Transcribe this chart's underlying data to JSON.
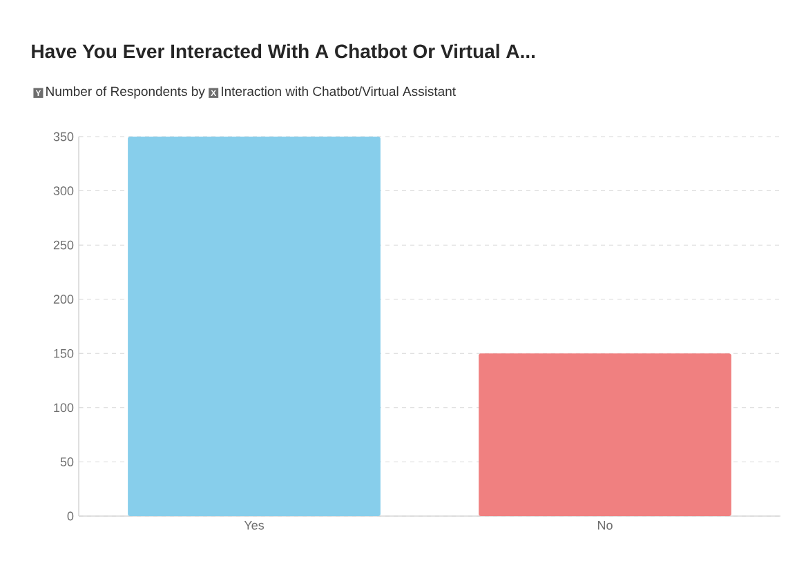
{
  "chart_data": {
    "type": "bar",
    "title": "Have You Ever Interacted With A Chatbot Or Virtual A...",
    "subtitle": "by",
    "ylabel": "Number of Respondents",
    "xlabel": "Interaction with Chatbot/Virtual Assistant",
    "annotations": [
      "Y",
      "X"
    ],
    "categories": [
      "Yes",
      "No"
    ],
    "values": [
      350,
      150
    ],
    "colors": [
      "#87ceeb",
      "#f08080"
    ],
    "ylim": [
      0,
      350
    ],
    "yticks": [
      0,
      50,
      100,
      150,
      200,
      250,
      300,
      350
    ],
    "grid": "y"
  }
}
